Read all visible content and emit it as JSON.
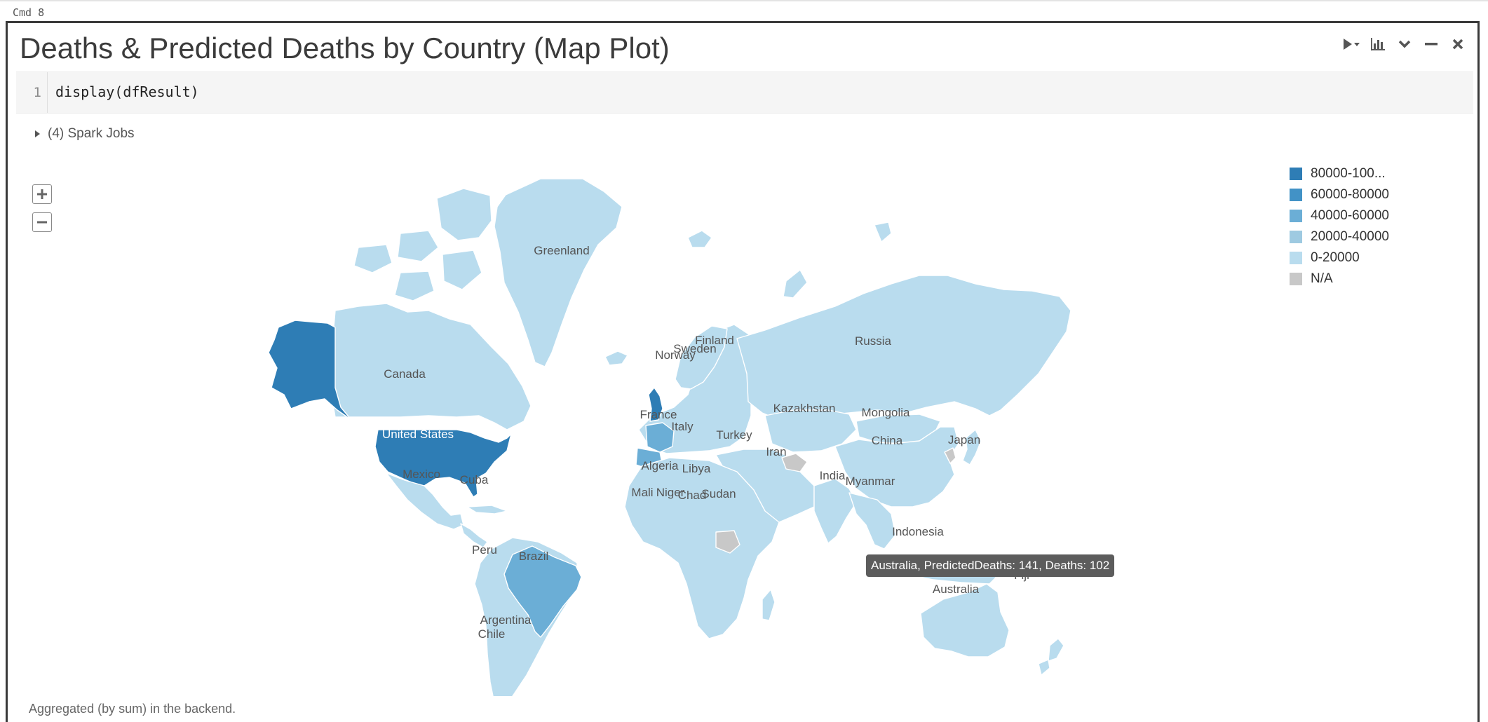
{
  "cmd_label": "Cmd  8",
  "cell": {
    "title": "Deaths & Predicted Deaths by Country (Map Plot)",
    "code_line_number": "1",
    "code": "display(dfResult)",
    "spark_jobs": "(4) Spark Jobs",
    "footer": "Aggregated (by sum) in the backend."
  },
  "toolbar_icons": [
    "run-dropdown-icon",
    "chart-icon",
    "chevron-down-icon",
    "minimize-icon",
    "close-icon"
  ],
  "map": {
    "zoom_in_icon": "plus-icon",
    "zoom_out_icon": "minus-icon",
    "colors": {
      "bin_80000_100000": "#2e7db5",
      "bin_60000_80000": "#4292c6",
      "bin_40000_60000": "#6baed6",
      "bin_20000_40000": "#9ecae1",
      "bin_0_20000": "#b9dcee",
      "na": "#c8c8c8",
      "ocean": "#ffffff",
      "border": "#ffffff"
    },
    "legend": [
      {
        "label": "80000-100...",
        "color": "#2e7db5"
      },
      {
        "label": "60000-80000",
        "color": "#4292c6"
      },
      {
        "label": "40000-60000",
        "color": "#6baed6"
      },
      {
        "label": "20000-40000",
        "color": "#9ecae1"
      },
      {
        "label": "0-20000",
        "color": "#b9dcee"
      },
      {
        "label": "N/A",
        "color": "#c8c8c8"
      }
    ],
    "country_labels": {
      "greenland": "Greenland",
      "canada": "Canada",
      "united_states": "United States",
      "mexico": "Mexico",
      "cuba": "Cuba",
      "peru": "Peru",
      "brazil": "Brazil",
      "argentina": "Argentina",
      "chile": "Chile",
      "norway": "Norway",
      "sweden": "Sweden",
      "finland": "Finland",
      "france": "France",
      "italy": "Italy",
      "algeria": "Algeria",
      "libya": "Libya",
      "mali": "Mali",
      "niger": "Niger",
      "chad": "Chad",
      "sudan": "Sudan",
      "turkey": "Turkey",
      "iran": "Iran",
      "kazakhstan": "Kazakhstan",
      "mongolia": "Mongolia",
      "russia": "Russia",
      "china": "China",
      "japan": "Japan",
      "india": "India",
      "myanmar": "Myanmar",
      "indonesia": "Indonesia",
      "australia": "Australia",
      "fiji": "Fiji"
    },
    "tooltip": "Australia, PredictedDeaths: 141, Deaths: 102"
  }
}
